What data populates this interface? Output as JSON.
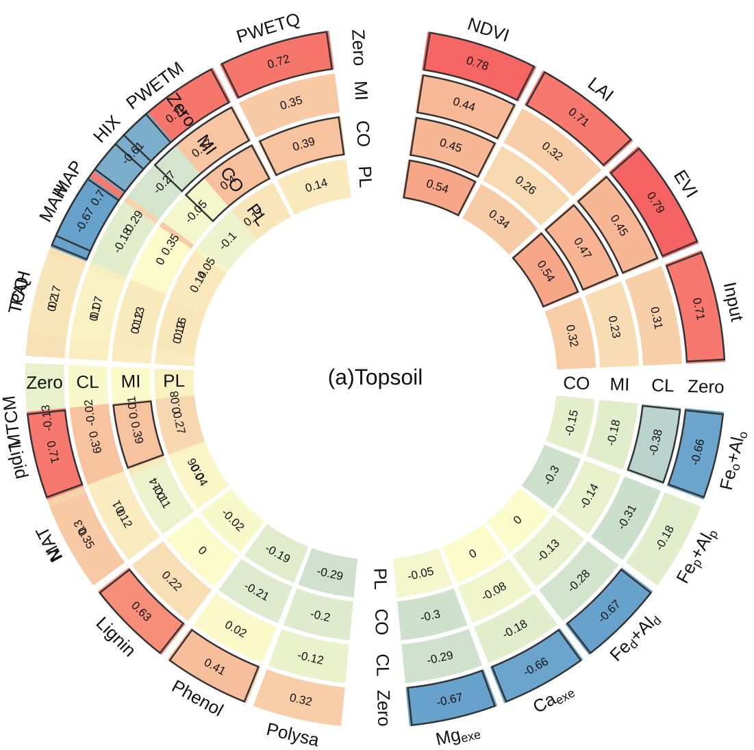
{
  "chart_data": {
    "type": "heatmap",
    "title": "(a)Topsoil",
    "value_range": [
      -0.8,
      0.8
    ],
    "palette": [
      "#3e8acb",
      "#93bccd",
      "#d6e6cd",
      "#fbfbcb",
      "#f7d8b0",
      "#f7a889",
      "#f56060"
    ],
    "groups": [
      {
        "rings": [
          "Zero",
          "MI",
          "CO",
          "PL"
        ],
        "variables": [
          {
            "name": "MAT",
            "values": [
              0.3,
              0.1,
              0.14,
              0.06
            ],
            "bold": [
              false,
              false,
              false,
              false
            ]
          },
          {
            "name": "MTCM",
            "values": [
              -0.13,
              -0.02,
              0.01,
              0.08
            ],
            "bold": [
              false,
              false,
              false,
              false
            ]
          },
          {
            "name": "TCQ",
            "values": [
              0.2,
              0.1,
              0.12,
              0.12
            ],
            "bold": [
              false,
              false,
              false,
              false
            ]
          },
          {
            "name": "MAP",
            "values": [
              0.7,
              0.29,
              0.35,
              0.05
            ],
            "bold": [
              true,
              false,
              false,
              false
            ]
          },
          {
            "name": "PWETM",
            "values": [
              0.72,
              0.37,
              0.4,
              0.17
            ],
            "bold": [
              true,
              true,
              true,
              false
            ]
          },
          {
            "name": "PWETQ",
            "values": [
              0.72,
              0.35,
              0.39,
              0.14
            ],
            "bold": [
              true,
              false,
              true,
              false
            ]
          }
        ]
      },
      {
        "rings": [
          "Zero",
          "CL",
          "MI",
          "CO"
        ],
        "variables": [
          {
            "name": "NDVI",
            "values": [
              0.78,
              0.44,
              0.45,
              0.54
            ],
            "bold": [
              true,
              true,
              true,
              true
            ]
          },
          {
            "name": "LAI",
            "values": [
              0.71,
              0.32,
              0.26,
              0.34
            ],
            "bold": [
              true,
              false,
              false,
              false
            ]
          },
          {
            "name": "EVI",
            "values": [
              0.79,
              0.45,
              0.47,
              0.54
            ],
            "bold": [
              true,
              true,
              true,
              true
            ]
          },
          {
            "name": "Input",
            "values": [
              0.71,
              0.31,
              0.23,
              0.32
            ],
            "bold": [
              true,
              false,
              false,
              false
            ]
          }
        ]
      },
      {
        "rings": [
          "Zero",
          "CL",
          "CO",
          "PL"
        ],
        "variables": [
          {
            "name": "Fe",
            "sub1": "o",
            "mid": "+Al",
            "sub2": "o",
            "values": [
              -0.66,
              -0.38,
              -0.18,
              -0.15
            ],
            "bold": [
              true,
              true,
              false,
              false
            ]
          },
          {
            "name": "Fe",
            "sub1": "p",
            "mid": "+Al",
            "sub2": "p",
            "values": [
              -0.18,
              -0.31,
              -0.14,
              -0.3
            ],
            "bold": [
              false,
              false,
              false,
              false
            ]
          },
          {
            "name": "Fe",
            "sub1": "d",
            "mid": "+Al",
            "sub2": "d",
            "values": [
              -0.67,
              -0.28,
              -0.13,
              0
            ],
            "bold": [
              true,
              false,
              false,
              false
            ]
          },
          {
            "name": "Ca",
            "sub1": "exe",
            "values": [
              -0.66,
              -0.18,
              -0.08,
              0
            ],
            "bold": [
              true,
              false,
              false,
              false
            ]
          },
          {
            "name": "Mg",
            "sub1": "exe",
            "values": [
              -0.67,
              -0.29,
              -0.3,
              -0.05
            ],
            "bold": [
              true,
              false,
              false,
              false
            ]
          }
        ]
      },
      {
        "rings": [
          "Zero",
          "CL",
          "MI",
          "PL"
        ],
        "variables": [
          {
            "name": "Polysa",
            "values": [
              0.32,
              -0.12,
              -0.2,
              -0.29
            ],
            "bold": [
              false,
              false,
              false,
              false
            ]
          },
          {
            "name": "Phenol",
            "values": [
              0.41,
              0.02,
              -0.21,
              -0.19
            ],
            "bold": [
              true,
              false,
              false,
              false
            ]
          },
          {
            "name": "Lignin",
            "values": [
              0.63,
              0.22,
              0,
              -0.02
            ],
            "bold": [
              true,
              false,
              false,
              false
            ]
          },
          {
            "name": "N",
            "values": [
              0.35,
              0.12,
              -0.11,
              0.04
            ],
            "bold": [
              false,
              false,
              false,
              false
            ]
          },
          {
            "name": "Lipid",
            "values": [
              0.71,
              0.39,
              0.39,
              0.27
            ],
            "bold": [
              true,
              false,
              true,
              false
            ]
          }
        ]
      },
      {
        "rings": [
          "Zero",
          "MI",
          "CO",
          "PL"
        ],
        "variables": [
          {
            "name": "PAH",
            "values": [
              0.17,
              0.07,
              0.13,
              0.16
            ],
            "bold": [
              false,
              false,
              false,
              false
            ]
          },
          {
            "name": "MAH",
            "values": [
              -0.67,
              -0.18,
              0,
              0.14
            ],
            "bold": [
              true,
              false,
              false,
              false
            ]
          },
          {
            "name": "HIX",
            "values": [
              -0.61,
              -0.27,
              -0.05,
              -0.1
            ],
            "bold": [
              true,
              false,
              false,
              false
            ]
          }
        ]
      }
    ]
  }
}
